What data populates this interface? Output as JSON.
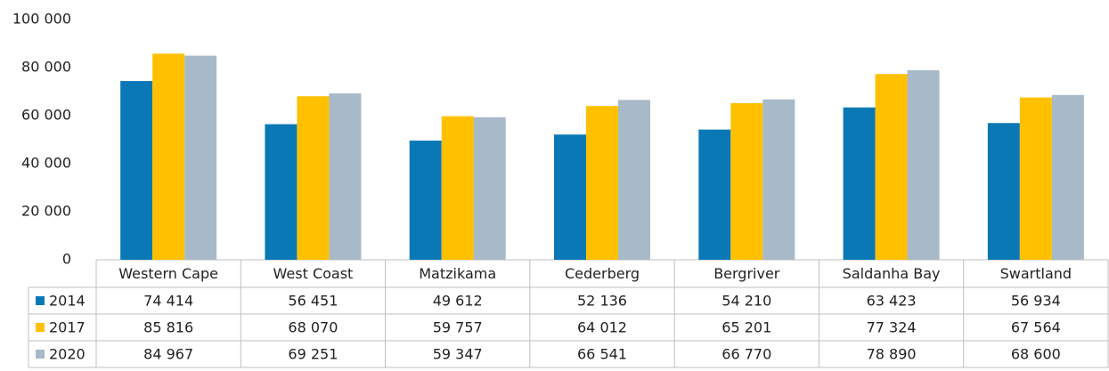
{
  "chart_data": {
    "type": "bar",
    "categories": [
      "Western Cape",
      "West Coast",
      "Matzikama",
      "Cederberg",
      "Bergriver",
      "Saldanha Bay",
      "Swartland"
    ],
    "series": [
      {
        "name": "2014",
        "color": "#0a78b5",
        "values": [
          74414,
          56451,
          49612,
          52136,
          54210,
          63423,
          56934
        ],
        "value_labels": [
          "74 414",
          "56 451",
          "49 612",
          "52 136",
          "54 210",
          "63 423",
          "56 934"
        ]
      },
      {
        "name": "2017",
        "color": "#ffc000",
        "values": [
          85816,
          68070,
          59757,
          64012,
          65201,
          77324,
          67564
        ],
        "value_labels": [
          "85 816",
          "68 070",
          "59 757",
          "64 012",
          "65 201",
          "77 324",
          "67 564"
        ]
      },
      {
        "name": "2020",
        "color": "#a8b9c8",
        "values": [
          84967,
          69251,
          59347,
          66541,
          66770,
          78890,
          68600
        ],
        "value_labels": [
          "84 967",
          "69 251",
          "59 347",
          "66 541",
          "66 770",
          "78 890",
          "68 600"
        ]
      }
    ],
    "ylim": [
      0,
      100000
    ],
    "yticks": [
      0,
      {
        "value": 20000,
        "label": "20 000"
      },
      {
        "value": 40000,
        "label": "40 000"
      },
      {
        "value": 60000,
        "label": "60 000"
      },
      {
        "value": 80000,
        "label": "80 000"
      },
      {
        "value": 100000,
        "label": "100 000"
      }
    ],
    "grid": false
  }
}
